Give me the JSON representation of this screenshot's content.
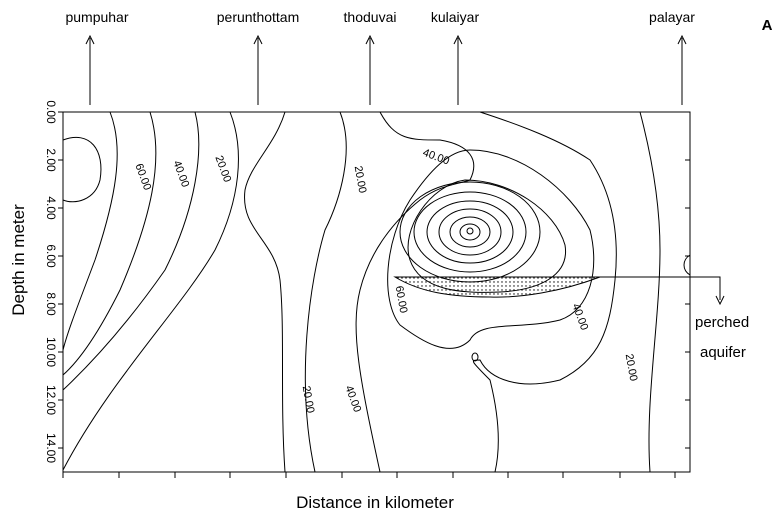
{
  "chart_data": {
    "type": "contour",
    "y_label": "Depth in meter",
    "x_label": "Distance in kilometer",
    "panel_label": "A",
    "ylim": [
      0,
      15
    ],
    "yticks": [
      {
        "value": 0,
        "label": "0.00"
      },
      {
        "value": 2,
        "label": "2.00"
      },
      {
        "value": 4,
        "label": "4.00"
      },
      {
        "value": 6,
        "label": "6.00"
      },
      {
        "value": 8,
        "label": "8.00"
      },
      {
        "value": 10,
        "label": "10.00"
      },
      {
        "value": 12,
        "label": "12.00"
      },
      {
        "value": 14,
        "label": "14.00"
      }
    ],
    "locations": [
      "pumpuhar",
      "perunthottam",
      "thoduvai",
      "kulaiyar",
      "palayar"
    ],
    "contour_labels": [
      "60.00",
      "40.00",
      "20.00",
      "20.00",
      "40.00",
      "60.00",
      "40.00",
      "20.00",
      "20.00",
      "40.00"
    ],
    "annotation": [
      "perched",
      "aquifer"
    ]
  }
}
